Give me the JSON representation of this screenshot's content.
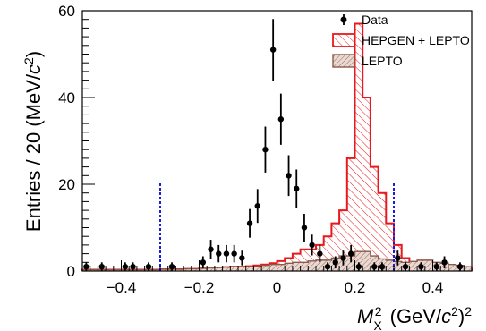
{
  "chart_data": {
    "type": "bar",
    "title": "",
    "xlabel": {
      "sym": "M",
      "sub": "X",
      "sup": "2",
      "unit_pre": " (GeV/",
      "unit_c": "c",
      "unit_sup": "2",
      "unit_post": ")",
      "outer_sup": "2"
    },
    "ylabel": {
      "pre": "Entries / 20 (MeV/",
      "c": "c",
      "sup": "2",
      "post": ")"
    },
    "xlim": [
      -0.5,
      0.5
    ],
    "ylim": [
      0,
      60
    ],
    "xticks": [
      -0.4,
      -0.2,
      0,
      0.2,
      0.4
    ],
    "xtick_labels": [
      "−0.4",
      "−0.2",
      "0",
      "0.2",
      "0.4"
    ],
    "yticks": [
      0,
      20,
      40,
      60
    ],
    "ytick_labels": [
      "0",
      "20",
      "40",
      "60"
    ],
    "grid": false,
    "legend_position": "top-right",
    "legend": [
      {
        "label": "Data",
        "kind": "marker",
        "color": "#000000"
      },
      {
        "label": "HEPGEN + LEPTO",
        "kind": "hatch-red",
        "color": "#e8191c"
      },
      {
        "label": "LEPTO",
        "kind": "hatch-brown",
        "color": "#8b5a4a"
      }
    ],
    "cut_lines": [
      -0.3,
      0.3
    ],
    "cut_line_color": "#1a1adf",
    "bin_width": 0.02,
    "bin_edges_start": -0.5,
    "series": [
      {
        "name": "HEPGEN + LEPTO",
        "style": "step-hatched",
        "color": "#e8191c",
        "values": [
          0.3,
          0.3,
          0.3,
          0.3,
          0.3,
          0.3,
          0.3,
          0.3,
          0.3,
          0.3,
          0.4,
          0.4,
          0.4,
          0.5,
          0.5,
          0.6,
          0.7,
          0.8,
          0.9,
          1.0,
          1.0,
          1.1,
          1.3,
          1.5,
          1.8,
          2.3,
          3,
          4,
          5,
          5,
          6,
          8,
          11,
          14,
          26,
          57,
          40,
          24,
          18,
          11,
          6,
          3,
          2,
          1.2,
          1.0,
          1.0,
          0.8,
          0.7,
          0.6,
          0.5
        ]
      },
      {
        "name": "LEPTO",
        "style": "step-filled",
        "color": "#8b5a4a",
        "values": [
          0.3,
          0.3,
          0.3,
          0.3,
          0.3,
          0.3,
          0.3,
          0.3,
          0.3,
          0.3,
          0.4,
          0.4,
          0.4,
          0.5,
          0.5,
          0.6,
          0.7,
          0.8,
          0.9,
          1.0,
          1.0,
          1.0,
          1.0,
          1.3,
          1.5,
          1.5,
          1.8,
          2.0,
          2.0,
          2.3,
          2.5,
          2.5,
          3.0,
          3.5,
          3.5,
          4.5,
          4.5,
          3.5,
          2.8,
          2.5,
          2.2,
          2.0,
          2.2,
          2.5,
          2.5,
          2.0,
          1.8,
          1.5,
          1.3,
          1.0
        ]
      },
      {
        "name": "Data",
        "style": "points",
        "color": "#000000",
        "points": [
          {
            "x": -0.49,
            "y": 1,
            "err": 1
          },
          {
            "x": -0.45,
            "y": 1,
            "err": 1
          },
          {
            "x": -0.39,
            "y": 1,
            "err": 1
          },
          {
            "x": -0.37,
            "y": 1,
            "err": 1
          },
          {
            "x": -0.33,
            "y": 1,
            "err": 1
          },
          {
            "x": -0.27,
            "y": 1,
            "err": 1
          },
          {
            "x": -0.19,
            "y": 2,
            "err": 1.4
          },
          {
            "x": -0.17,
            "y": 5,
            "err": 2.2
          },
          {
            "x": -0.15,
            "y": 4,
            "err": 2
          },
          {
            "x": -0.13,
            "y": 4,
            "err": 2
          },
          {
            "x": -0.11,
            "y": 4,
            "err": 2
          },
          {
            "x": -0.09,
            "y": 3,
            "err": 1.7
          },
          {
            "x": -0.07,
            "y": 11,
            "err": 3.3
          },
          {
            "x": -0.05,
            "y": 15,
            "err": 3.9
          },
          {
            "x": -0.03,
            "y": 28,
            "err": 5.3
          },
          {
            "x": -0.01,
            "y": 51,
            "err": 7.1
          },
          {
            "x": 0.01,
            "y": 35,
            "err": 5.9
          },
          {
            "x": 0.03,
            "y": 22,
            "err": 4.7
          },
          {
            "x": 0.05,
            "y": 19,
            "err": 4.4
          },
          {
            "x": 0.07,
            "y": 10,
            "err": 3.2
          },
          {
            "x": 0.09,
            "y": 6,
            "err": 2.4
          },
          {
            "x": 0.11,
            "y": 4,
            "err": 2
          },
          {
            "x": 0.13,
            "y": 1,
            "err": 1
          },
          {
            "x": 0.15,
            "y": 2,
            "err": 1.4
          },
          {
            "x": 0.17,
            "y": 3,
            "err": 1.7
          },
          {
            "x": 0.19,
            "y": 4,
            "err": 2
          },
          {
            "x": 0.21,
            "y": 1,
            "err": 1
          },
          {
            "x": 0.25,
            "y": 1,
            "err": 1
          },
          {
            "x": 0.27,
            "y": 1,
            "err": 1
          },
          {
            "x": 0.31,
            "y": 3,
            "err": 1.7
          },
          {
            "x": 0.33,
            "y": 1,
            "err": 1
          },
          {
            "x": 0.37,
            "y": 1,
            "err": 1
          },
          {
            "x": 0.41,
            "y": 1,
            "err": 1
          },
          {
            "x": 0.43,
            "y": 2,
            "err": 1.4
          },
          {
            "x": 0.47,
            "y": 1,
            "err": 1
          }
        ]
      }
    ]
  }
}
